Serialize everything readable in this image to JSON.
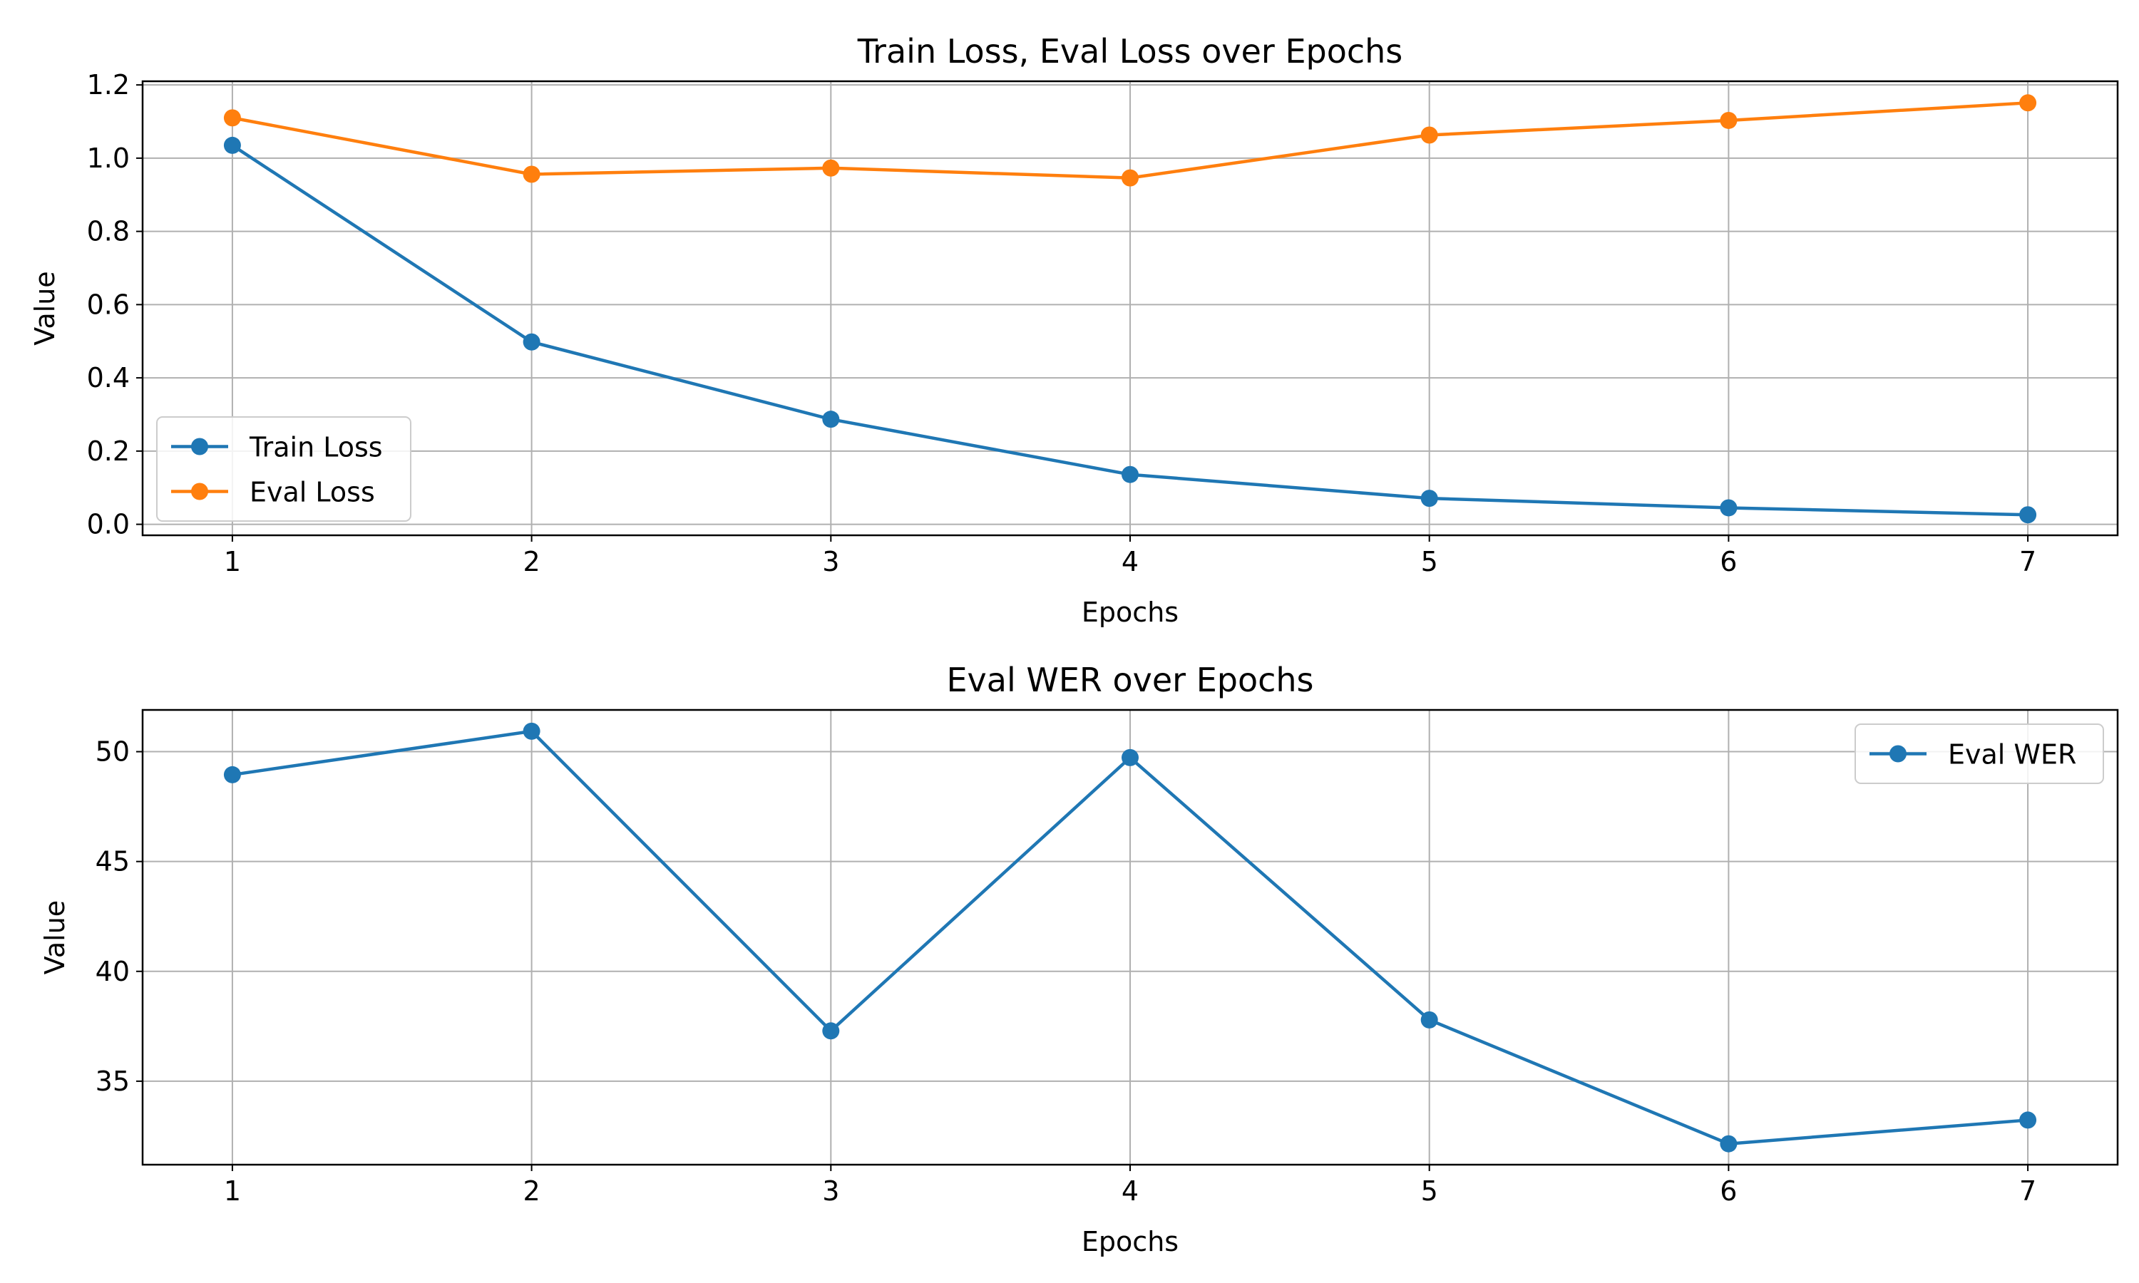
{
  "chart_data": [
    {
      "type": "line",
      "title": "Train Loss, Eval Loss over Epochs",
      "xlabel": "Epochs",
      "ylabel": "Value",
      "x": [
        1,
        2,
        3,
        4,
        5,
        6,
        7
      ],
      "xticks": [
        "1",
        "2",
        "3",
        "4",
        "5",
        "6",
        "7"
      ],
      "xlim": [
        0.7,
        7.3
      ],
      "ylim": [
        -0.03,
        1.21
      ],
      "yticks": [
        0.0,
        0.2,
        0.4,
        0.6,
        0.8,
        1.0,
        1.2
      ],
      "ytick_labels": [
        "0.0",
        "0.2",
        "0.4",
        "0.6",
        "0.8",
        "1.0",
        "1.2"
      ],
      "grid": true,
      "legend_position": "lower-left",
      "series": [
        {
          "name": "Train Loss",
          "color": "#1f77b4",
          "values": [
            1.035,
            0.498,
            0.287,
            0.136,
            0.071,
            0.045,
            0.026
          ]
        },
        {
          "name": "Eval Loss",
          "color": "#ff7f0e",
          "values": [
            1.11,
            0.956,
            0.973,
            0.946,
            1.063,
            1.103,
            1.151
          ]
        }
      ]
    },
    {
      "type": "line",
      "title": "Eval WER over Epochs",
      "xlabel": "Epochs",
      "ylabel": "Value",
      "x": [
        1,
        2,
        3,
        4,
        5,
        6,
        7
      ],
      "xticks": [
        "1",
        "2",
        "3",
        "4",
        "5",
        "6",
        "7"
      ],
      "xlim": [
        0.7,
        7.3
      ],
      "ylim": [
        31.2,
        51.9
      ],
      "yticks": [
        35,
        40,
        45,
        50
      ],
      "ytick_labels": [
        "35",
        "40",
        "45",
        "50"
      ],
      "grid": true,
      "legend_position": "upper-right",
      "series": [
        {
          "name": "Eval WER",
          "color": "#1f77b4",
          "values": [
            48.95,
            50.93,
            37.29,
            49.73,
            37.79,
            32.15,
            33.23
          ]
        }
      ]
    }
  ]
}
